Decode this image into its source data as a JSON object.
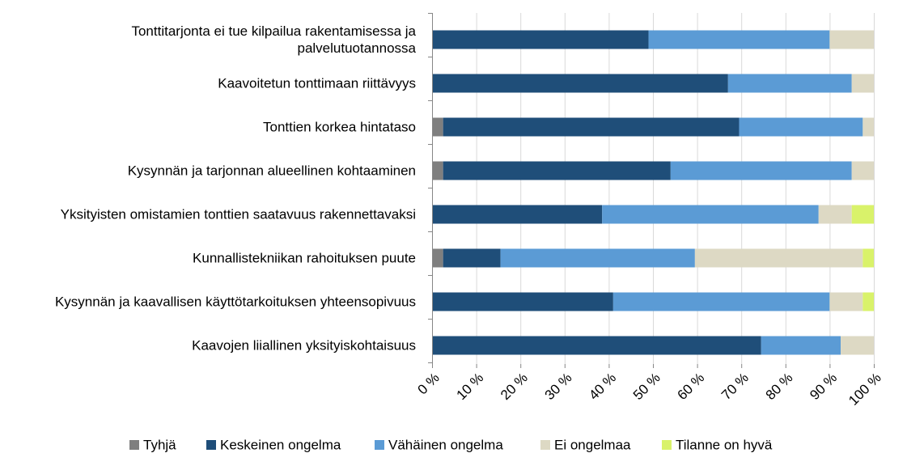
{
  "chart_data": {
    "type": "bar",
    "orientation": "horizontal",
    "stacked": true,
    "percent": true,
    "categories": [
      [
        "Tonttitarjonta ei tue kilpailua rakentamisessa ja",
        "palvelutuotannossa"
      ],
      [
        "Kaavoitetun tonttimaan riittävyys"
      ],
      [
        "Tonttien korkea hintataso"
      ],
      [
        "Kysynnän ja tarjonnan alueellinen kohtaaminen"
      ],
      [
        "Yksityisten omistamien tonttien saatavuus rakennettavaksi"
      ],
      [
        "Kunnallistekniikan rahoituksen puute"
      ],
      [
        "Kysynnän ja kaavallisen käyttötarkoituksen yhteensopivuus"
      ],
      [
        "Kaavojen liiallinen yksityiskohtaisuus"
      ]
    ],
    "series": [
      {
        "name": "Tyhjä",
        "color": "#7f7f7f",
        "values": [
          0,
          0,
          2.5,
          2.5,
          0,
          2.5,
          0,
          0
        ]
      },
      {
        "name": "Keskeinen ongelma",
        "color": "#1f4e79",
        "values": [
          49,
          67,
          67,
          51.5,
          38.5,
          13,
          41,
          74.5
        ]
      },
      {
        "name": "Vähäinen ongelma",
        "color": "#5b9bd5",
        "values": [
          41,
          28,
          28,
          41,
          49,
          44,
          49,
          18
        ]
      },
      {
        "name": "Ei ongelmaa",
        "color": "#ddd9c4",
        "values": [
          10,
          5,
          2.5,
          5,
          7.5,
          38,
          7.5,
          7.5
        ]
      },
      {
        "name": "Tilanne on hyvä",
        "color": "#d9f26a",
        "values": [
          0,
          0,
          0,
          0,
          5,
          2.5,
          2.5,
          0
        ]
      }
    ],
    "xticks": [
      "0 %",
      "10 %",
      "20 %",
      "30 %",
      "40 %",
      "50 %",
      "60 %",
      "70 %",
      "80 %",
      "90 %",
      "100 %"
    ],
    "xlim": [
      0,
      100
    ],
    "grid": true,
    "legend_position": "bottom"
  }
}
